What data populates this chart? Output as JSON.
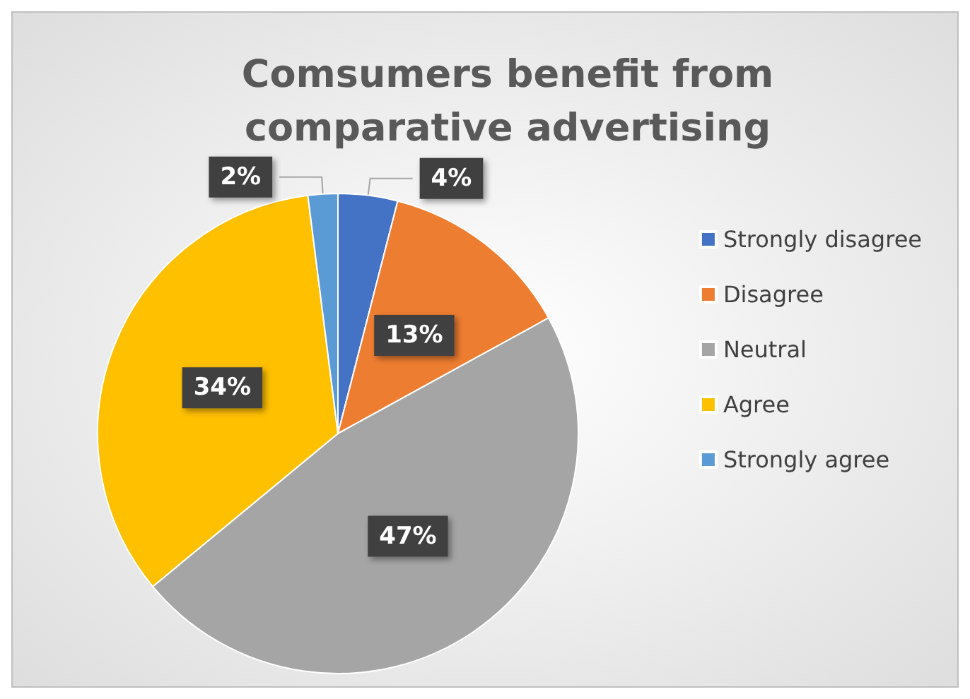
{
  "chart_data": {
    "type": "pie",
    "title": "Comsumers benefit from\ncomparative advertising",
    "categories": [
      "Strongly disagree",
      "Disagree",
      "Neutral",
      "Agree",
      "Strongly agree"
    ],
    "values": [
      4,
      13,
      47,
      34,
      2
    ],
    "colors": [
      "#4472c4",
      "#ed7d31",
      "#a5a5a5",
      "#ffc000",
      "#5b9bd5"
    ],
    "value_labels": [
      "4%",
      "13%",
      "47%",
      "34%",
      "2%"
    ],
    "legend": "right"
  }
}
